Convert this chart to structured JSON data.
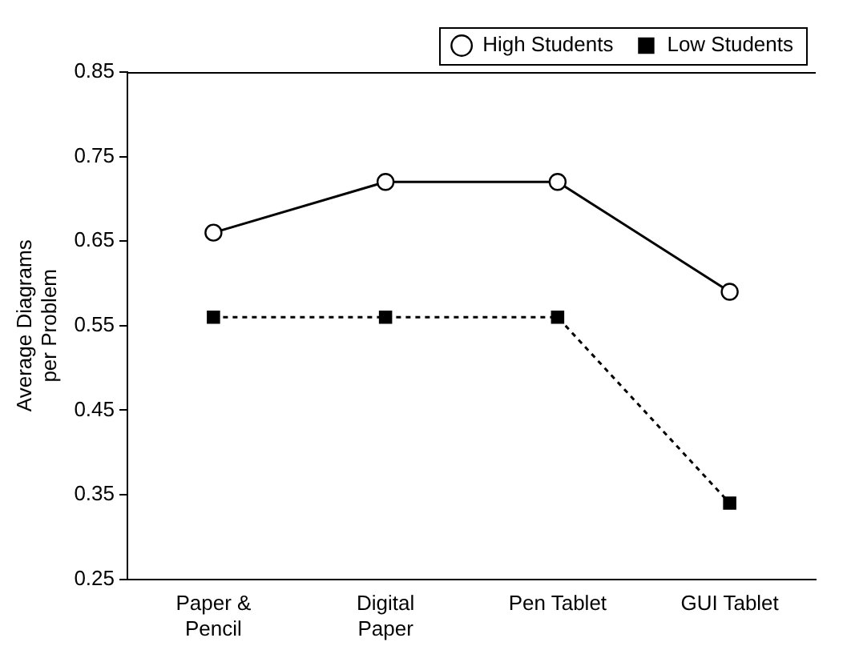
{
  "chart_data": {
    "type": "line",
    "ylabel": "Average Diagrams\nper Problem",
    "categories": [
      "Paper &\nPencil",
      "Digital\nPaper",
      "Pen Tablet",
      "GUI Tablet"
    ],
    "series": [
      {
        "name": "High Students",
        "color": "#000000",
        "values": [
          0.66,
          0.72,
          0.72,
          0.59
        ],
        "marker": "circle",
        "line_style": "solid"
      },
      {
        "name": "Low Students",
        "color": "#000000",
        "values": [
          0.56,
          0.56,
          0.56,
          0.34
        ],
        "marker": "square",
        "line_style": "dotted"
      }
    ],
    "ylim": [
      0.25,
      0.85
    ],
    "yticks": [
      0.25,
      0.35,
      0.45,
      0.55,
      0.65,
      0.75,
      0.85
    ],
    "grid": false,
    "legend": "top right"
  }
}
